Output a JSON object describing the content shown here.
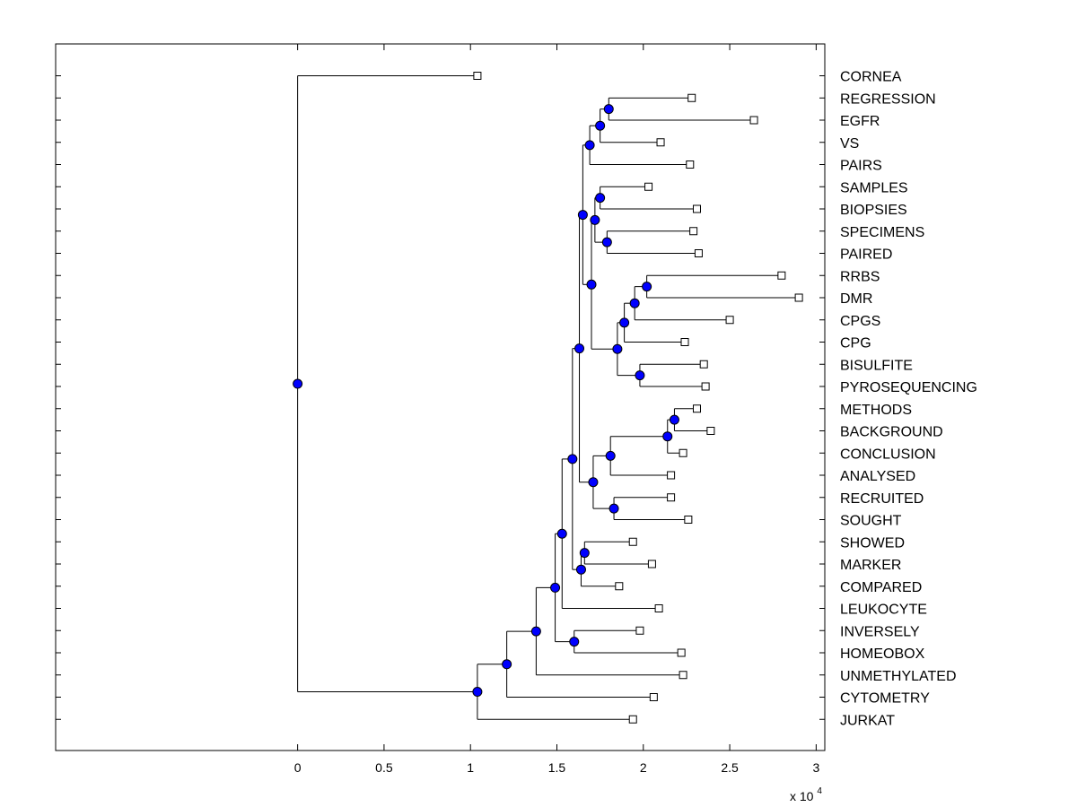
{
  "chart_data": {
    "type": "dendrogram",
    "orientation": "horizontal",
    "xlabel": "",
    "ylabel": "",
    "x_multiplier": {
      "base": "x 10",
      "exponent": "4"
    },
    "xlim": [
      -14000,
      30500
    ],
    "xticks": [
      0,
      5000,
      10000,
      15000,
      20000,
      25000,
      30000
    ],
    "xtick_labels": [
      "0",
      "0.5",
      "1",
      "1.5",
      "2",
      "2.5",
      "3"
    ],
    "leaf_marker": "open-square",
    "node_marker": "filled-circle",
    "node_color": "#0000ff",
    "leaves": [
      {
        "label": "CORNEA",
        "x": 10400
      },
      {
        "label": "REGRESSION",
        "x": 22800
      },
      {
        "label": "EGFR",
        "x": 26400
      },
      {
        "label": "VS",
        "x": 21000
      },
      {
        "label": "PAIRS",
        "x": 22700
      },
      {
        "label": "SAMPLES",
        "x": 20300
      },
      {
        "label": "BIOPSIES",
        "x": 23100
      },
      {
        "label": "SPECIMENS",
        "x": 22900
      },
      {
        "label": "PAIRED",
        "x": 23200
      },
      {
        "label": "RRBS",
        "x": 28000
      },
      {
        "label": "DMR",
        "x": 29000
      },
      {
        "label": "CPGS",
        "x": 25000
      },
      {
        "label": "CPG",
        "x": 22400
      },
      {
        "label": "BISULFITE",
        "x": 23500
      },
      {
        "label": "PYROSEQUENCING",
        "x": 23600
      },
      {
        "label": "METHODS",
        "x": 23100
      },
      {
        "label": "BACKGROUND",
        "x": 23900
      },
      {
        "label": "CONCLUSION",
        "x": 22300
      },
      {
        "label": "ANALYSED",
        "x": 21600
      },
      {
        "label": "RECRUITED",
        "x": 21600
      },
      {
        "label": "SOUGHT",
        "x": 22600
      },
      {
        "label": "SHOWED",
        "x": 19400
      },
      {
        "label": "MARKER",
        "x": 20500
      },
      {
        "label": "COMPARED",
        "x": 18600
      },
      {
        "label": "LEUKOCYTE",
        "x": 20900
      },
      {
        "label": "INVERSELY",
        "x": 19800
      },
      {
        "label": "HOMEOBOX",
        "x": 22200
      },
      {
        "label": "UNMETHYLATED",
        "x": 22300
      },
      {
        "label": "CYTOMETRY",
        "x": 20600
      },
      {
        "label": "JURKAT",
        "x": 19400
      }
    ],
    "merges": [
      {
        "id": "m1",
        "x": 18000,
        "children": [
          "REGRESSION",
          "EGFR"
        ]
      },
      {
        "id": "m2",
        "x": 17500,
        "children": [
          "m1",
          "VS"
        ]
      },
      {
        "id": "m3",
        "x": 16900,
        "children": [
          "m2",
          "PAIRS"
        ]
      },
      {
        "id": "m4",
        "x": 17500,
        "children": [
          "SAMPLES",
          "BIOPSIES"
        ]
      },
      {
        "id": "m5",
        "x": 17900,
        "children": [
          "SPECIMENS",
          "PAIRED"
        ]
      },
      {
        "id": "m6",
        "x": 17200,
        "children": [
          "m4",
          "m5"
        ]
      },
      {
        "id": "m7",
        "x": 20200,
        "children": [
          "RRBS",
          "DMR"
        ]
      },
      {
        "id": "m8",
        "x": 19500,
        "children": [
          "m7",
          "CPGS"
        ]
      },
      {
        "id": "m9",
        "x": 18900,
        "children": [
          "m8",
          "CPG"
        ]
      },
      {
        "id": "m10",
        "x": 19800,
        "children": [
          "BISULFITE",
          "PYROSEQUENCING"
        ]
      },
      {
        "id": "m11",
        "x": 18500,
        "children": [
          "m9",
          "m10"
        ]
      },
      {
        "id": "m12",
        "x": 17000,
        "children": [
          "m6",
          "m11"
        ]
      },
      {
        "id": "m13",
        "x": 16500,
        "children": [
          "m3",
          "m12"
        ]
      },
      {
        "id": "m14",
        "x": 21800,
        "children": [
          "METHODS",
          "BACKGROUND"
        ]
      },
      {
        "id": "m15",
        "x": 21400,
        "children": [
          "m14",
          "CONCLUSION"
        ]
      },
      {
        "id": "m16",
        "x": 18100,
        "children": [
          "m15",
          "ANALYSED"
        ]
      },
      {
        "id": "m17",
        "x": 18300,
        "children": [
          "RECRUITED",
          "SOUGHT"
        ]
      },
      {
        "id": "m18",
        "x": 17100,
        "children": [
          "m16",
          "m17"
        ]
      },
      {
        "id": "m19",
        "x": 16300,
        "children": [
          "m13",
          "m18"
        ]
      },
      {
        "id": "m20",
        "x": 16600,
        "children": [
          "SHOWED",
          "MARKER"
        ]
      },
      {
        "id": "m21",
        "x": 16400,
        "children": [
          "m20",
          "COMPARED"
        ]
      },
      {
        "id": "m22",
        "x": 15900,
        "children": [
          "m19",
          "m21"
        ]
      },
      {
        "id": "m23",
        "x": 15300,
        "children": [
          "m22",
          "LEUKOCYTE"
        ]
      },
      {
        "id": "m24",
        "x": 16000,
        "children": [
          "INVERSELY",
          "HOMEOBOX"
        ]
      },
      {
        "id": "m25",
        "x": 14900,
        "children": [
          "m23",
          "m24"
        ]
      },
      {
        "id": "m26",
        "x": 13800,
        "children": [
          "m25",
          "UNMETHYLATED"
        ]
      },
      {
        "id": "m27",
        "x": 12100,
        "children": [
          "m26",
          "CYTOMETRY"
        ]
      },
      {
        "id": "m28",
        "x": 10400,
        "children": [
          "m27",
          "JURKAT"
        ]
      },
      {
        "id": "root",
        "x": 0,
        "children": [
          "CORNEA",
          "m28"
        ]
      }
    ]
  }
}
